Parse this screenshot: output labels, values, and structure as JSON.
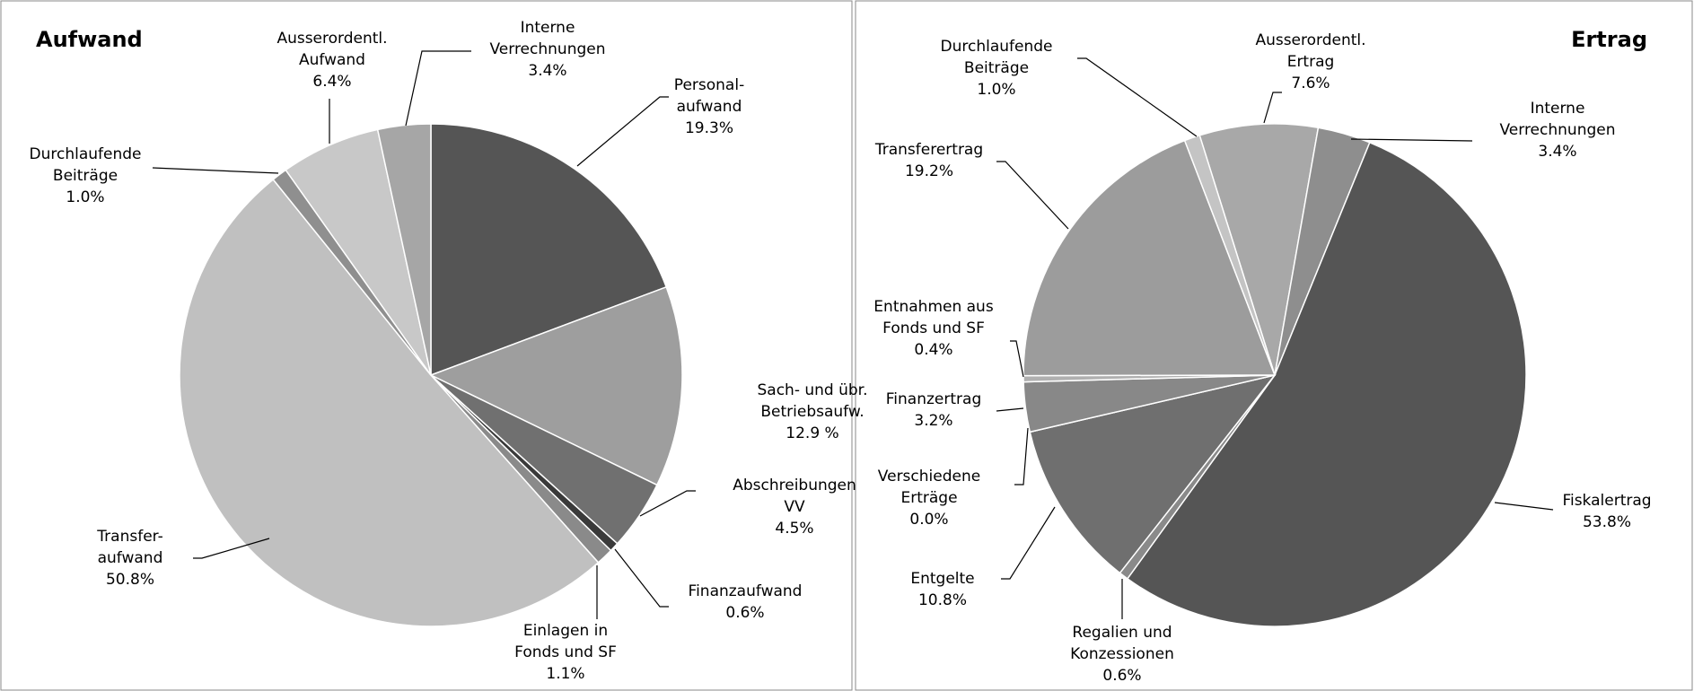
{
  "chart_data": [
    {
      "type": "pie",
      "title": "Aufwand",
      "start_angle": 0,
      "categories": [
        "Personal-\naufwand",
        "Sach- und übr.\nBetriebsaufw.",
        "Abschreibungen\nVV",
        "Finanzaufwand",
        "Einlagen in\nFonds und SF",
        "Transfer-\naufwand",
        "Durchlaufende\nBeiträge",
        "Ausserordentl.\nAufwand",
        "Interne\nVerrechnungen"
      ],
      "values": [
        19.3,
        12.9,
        4.5,
        0.6,
        1.1,
        50.8,
        1.0,
        6.4,
        3.4
      ],
      "value_labels": [
        "19.3%",
        "12.9 %",
        "4.5%",
        "0.6%",
        "1.1%",
        "50.8%",
        "1.0%",
        "6.4%",
        "3.4%"
      ],
      "colors": [
        "#555555",
        "#9e9e9e",
        "#707070",
        "#3a3a3a",
        "#8a8a8a",
        "#c0c0c0",
        "#8f8f8f",
        "#c8c8c8",
        "#a6a6a6"
      ]
    },
    {
      "type": "pie",
      "title": "Ertrag",
      "start_angle": -17.4,
      "categories": [
        "Ausserordentl.\nErtrag",
        "Interne\nVerrechnungen",
        "Fiskalertrag",
        "Regalien und\nKonzessionen",
        "Entgelte",
        "Verschiedene\nErträge",
        "Finanzertrag",
        "Entnahmen aus\nFonds und SF",
        "Transferertrag",
        "Durchlaufende\nBeiträge"
      ],
      "values": [
        7.6,
        3.4,
        53.8,
        0.6,
        10.8,
        0.0,
        3.2,
        0.4,
        19.2,
        1.0
      ],
      "value_labels": [
        "7.6%",
        "3.4%",
        "53.8%",
        "0.6%",
        "10.8%",
        "0.0%",
        "3.2%",
        "0.4%",
        "19.2%",
        "1.0%"
      ],
      "colors": [
        "#a8a8a8",
        "#8e8e8e",
        "#555555",
        "#8a8a8a",
        "#6f6f6f",
        "#7a7a7a",
        "#888888",
        "#b0b0b0",
        "#9c9c9c",
        "#c4c4c4"
      ]
    }
  ]
}
